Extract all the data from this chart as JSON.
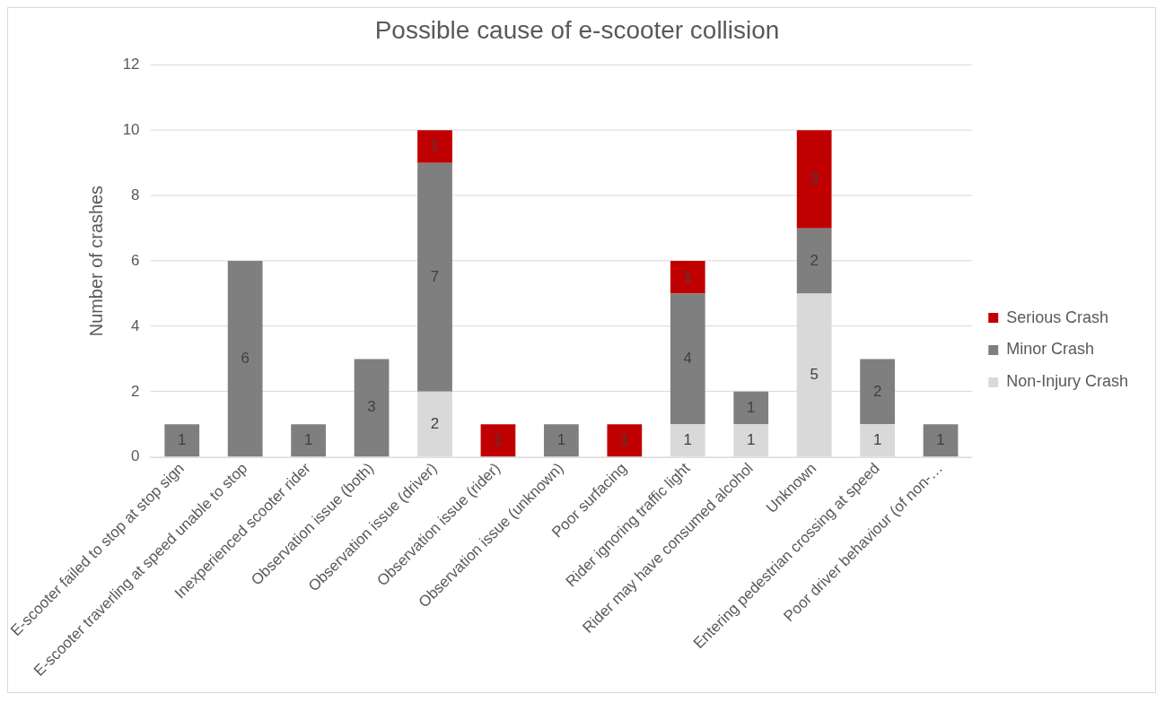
{
  "chart_data": {
    "type": "bar",
    "title": "Possible cause of e-scooter collision",
    "ylabel": "Number of crashes",
    "categories": [
      "E-scooter failed to stop at stop sign",
      "E-scooter traverling at speed unable to stop",
      "Inexperienced scooter rider",
      "Observation issue (both)",
      "Observation issue (driver)",
      "Observation issue (rider)",
      "Observation issue (unknown)",
      "Poor surfacing",
      "Rider ignoring traffic light",
      "Rider may have consumed alcohol",
      "Unknown",
      "Entering pedestrian crossing at speed",
      "Poor driver behaviour (of non-…"
    ],
    "series": [
      {
        "name": "Non-Injury Crash",
        "color": "#d9d9d9",
        "values": [
          null,
          null,
          null,
          null,
          2,
          null,
          null,
          null,
          1,
          1,
          5,
          1,
          null
        ]
      },
      {
        "name": "Minor Crash",
        "color": "#7f7f7f",
        "values": [
          1,
          6,
          1,
          3,
          7,
          null,
          1,
          null,
          4,
          1,
          2,
          2,
          1
        ]
      },
      {
        "name": "Serious Crash",
        "color": "#c00000",
        "values": [
          null,
          null,
          null,
          null,
          1,
          1,
          null,
          1,
          1,
          null,
          3,
          null,
          null
        ]
      }
    ],
    "stacked": true,
    "ylim": [
      0,
      12
    ],
    "yticks": [
      0,
      2,
      4,
      6,
      8,
      10,
      12
    ],
    "grid": "y",
    "legend": "right",
    "data_labels": true
  }
}
